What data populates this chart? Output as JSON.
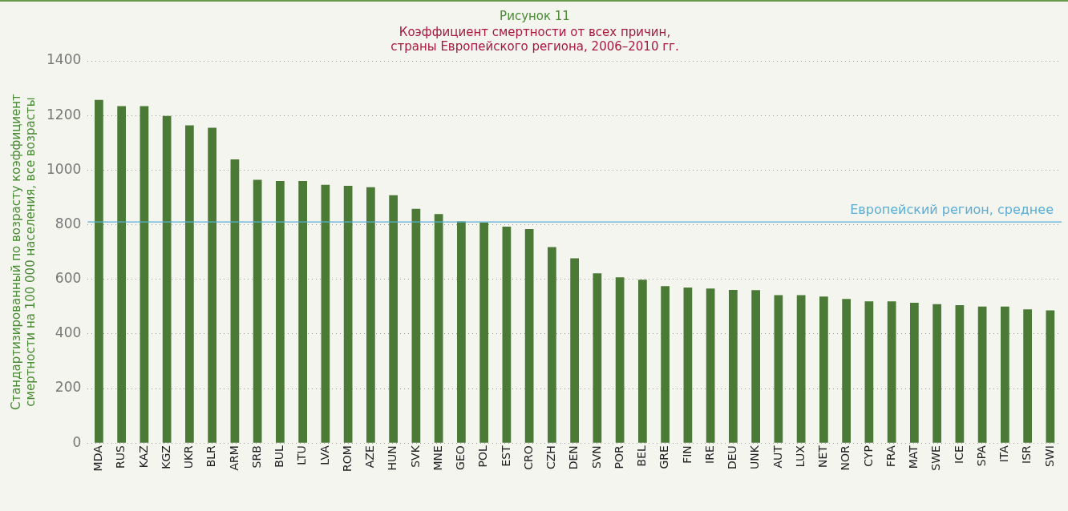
{
  "chart_data": {
    "type": "bar",
    "title": "Рисунок 11",
    "subtitle": "Коэффициент смертности от всех причин,\nстраны Европейского региона, 2006–2010 гг.",
    "ylabel": "Стандартизированный по возрасту коэффициент\nсмертности на 100 000 населения, все возрасты",
    "categories": [
      "MDA",
      "RUS",
      "KAZ",
      "KGZ",
      "UKR",
      "BLR",
      "ARM",
      "SRB",
      "BUL",
      "LTU",
      "LVA",
      "ROM",
      "AZE",
      "HUN",
      "SVK",
      "MNE",
      "GEO",
      "POL",
      "EST",
      "CRO",
      "CZH",
      "DEN",
      "SVN",
      "POR",
      "BEL",
      "GRE",
      "FIN",
      "IRE",
      "DEU",
      "UNK",
      "AUT",
      "LUX",
      "NET",
      "NOR",
      "CYP",
      "FRA",
      "MAT",
      "SWE",
      "ICE",
      "SPA",
      "ITA",
      "ISR",
      "SWI"
    ],
    "values": [
      1257,
      1234,
      1234,
      1198,
      1164,
      1155,
      1039,
      964,
      960,
      960,
      946,
      942,
      937,
      908,
      858,
      839,
      812,
      807,
      793,
      784,
      718,
      677,
      622,
      607,
      598,
      575,
      570,
      566,
      561,
      560,
      542,
      542,
      537,
      528,
      519,
      519,
      514,
      509,
      505,
      500,
      500,
      490,
      486
    ],
    "color": "#4a7a35",
    "ylim": [
      0,
      1400
    ],
    "yticks": [
      0,
      200,
      400,
      600,
      800,
      1000,
      1200,
      1400
    ],
    "grid": "y",
    "ref_lines": [
      {
        "axis": "y",
        "value": 810,
        "label": "Европейский регион, среднее",
        "color": "#5aaed6"
      }
    ]
  }
}
